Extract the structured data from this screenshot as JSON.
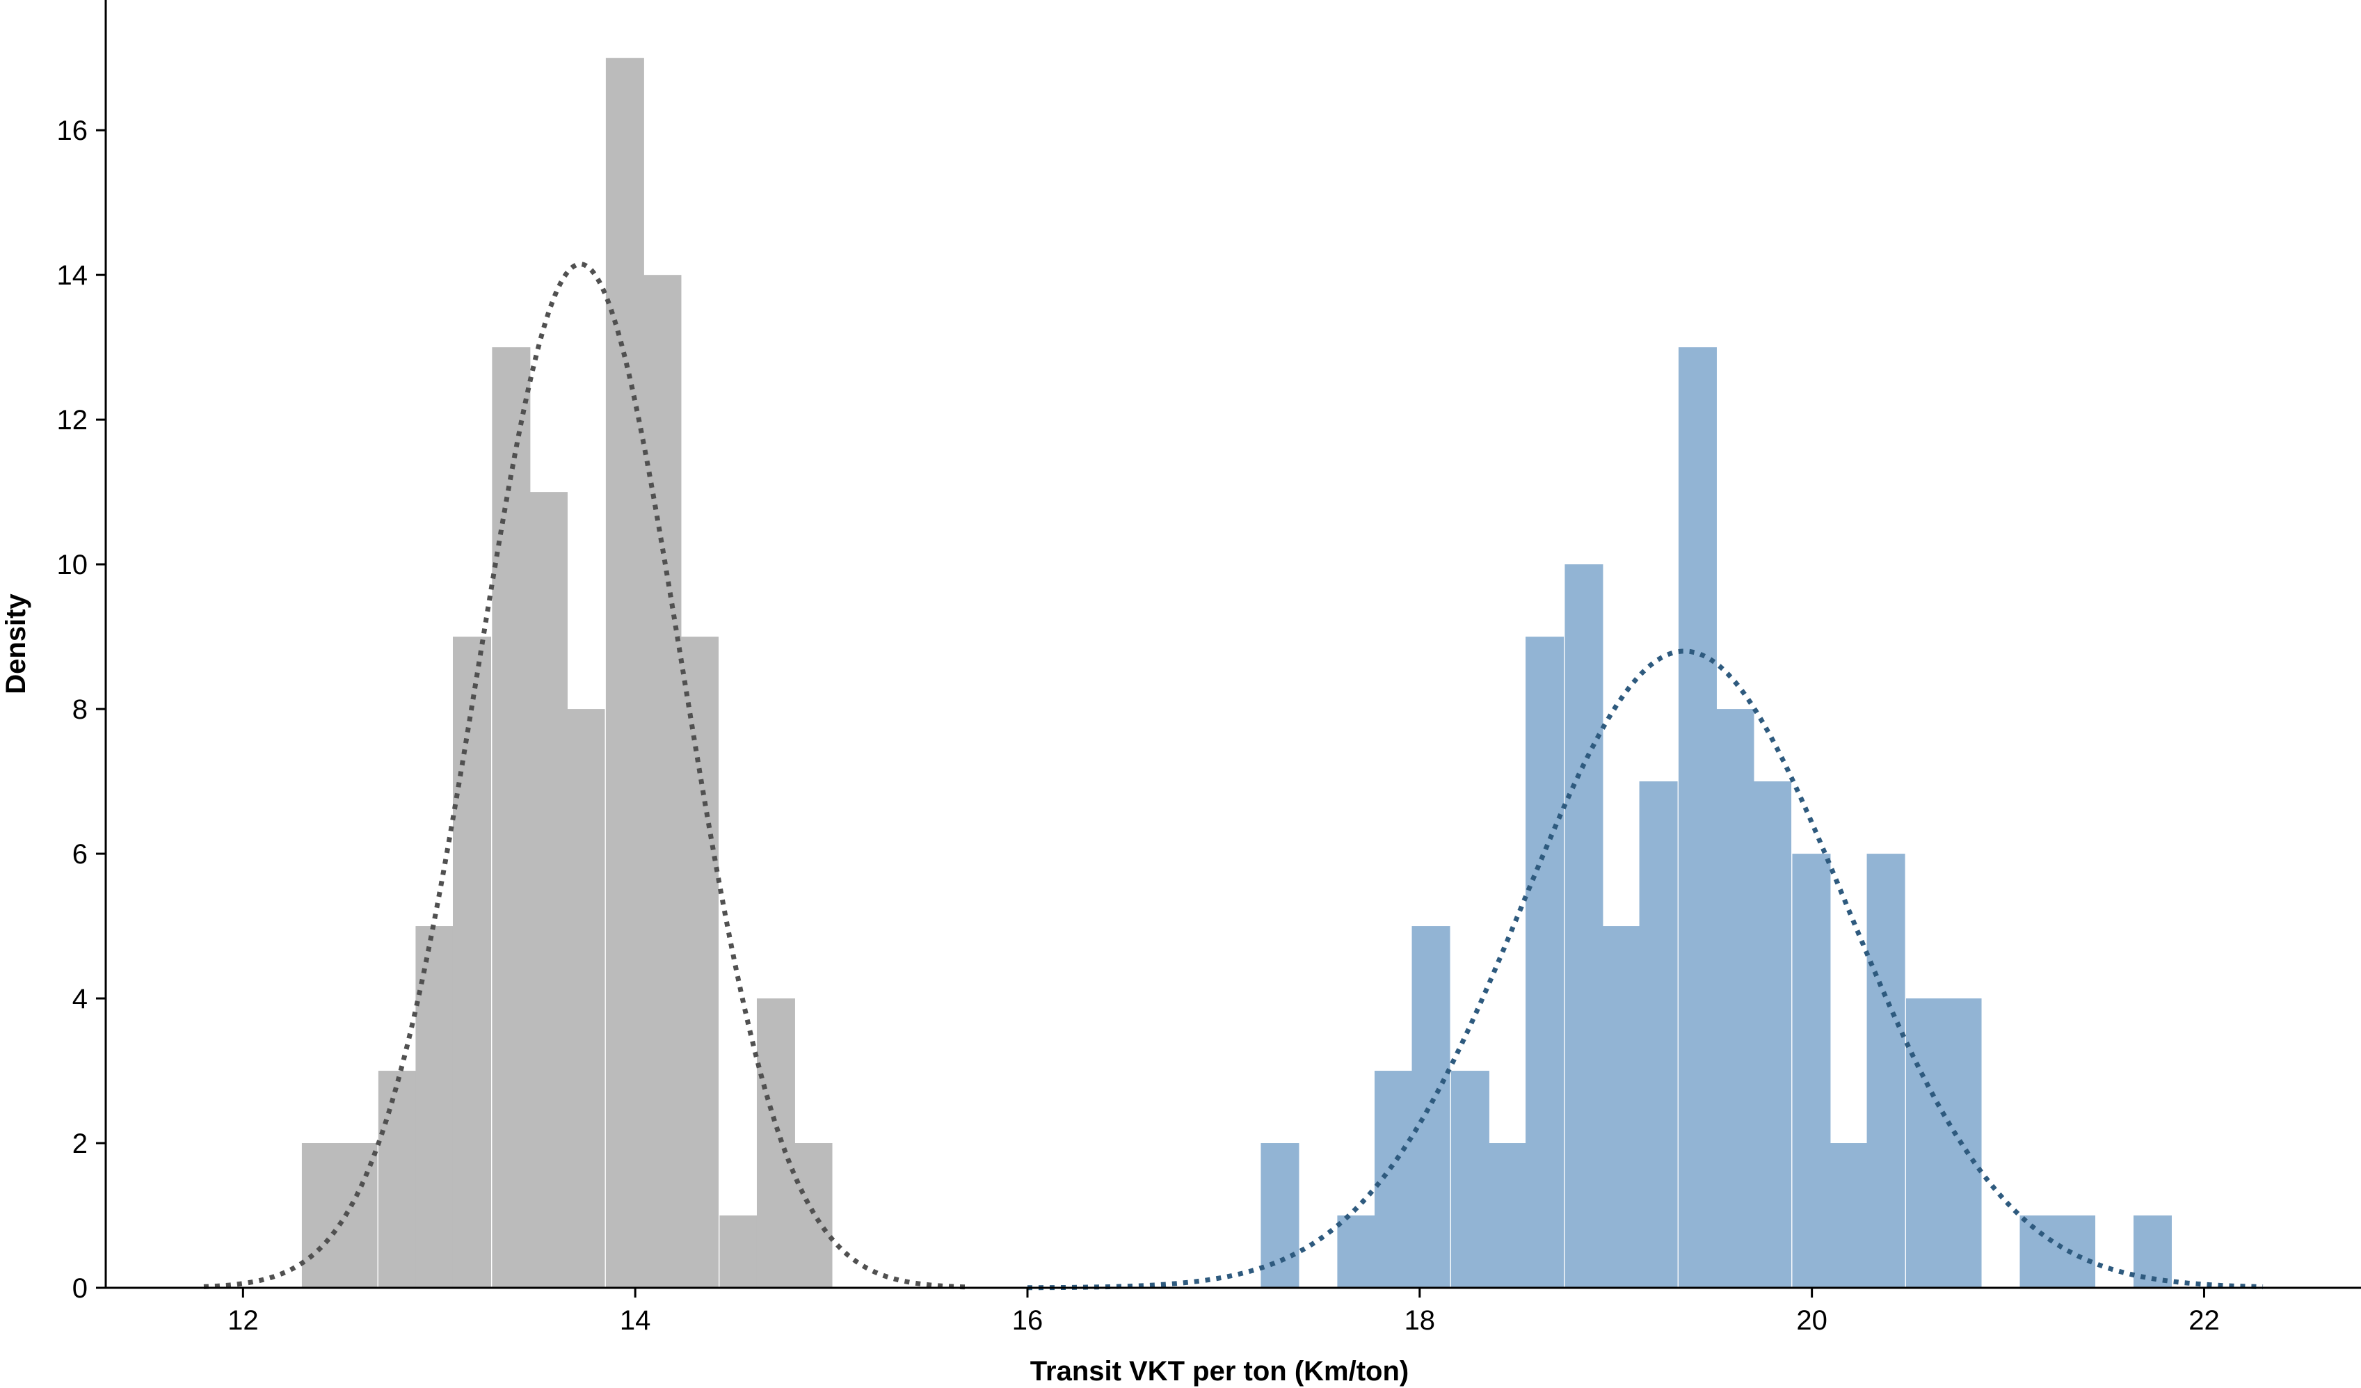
{
  "chart_data": {
    "type": "bar",
    "subtype": "histogram-with-density-curves",
    "title": "",
    "xlabel": "Transit VKT per ton (Km/ton)",
    "ylabel": "Density",
    "xlim": [
      11.3,
      22.8
    ],
    "ylim": [
      0,
      17.8
    ],
    "xticks": [
      12,
      14,
      16,
      18,
      20,
      22
    ],
    "yticks": [
      0,
      2,
      4,
      6,
      8,
      10,
      12,
      14,
      16
    ],
    "grid": false,
    "legend": "none",
    "bin_width": 0.193,
    "series": [
      {
        "color": "#bbbbbb",
        "curve_color": "#505050",
        "bins": [
          {
            "x0": 12.3,
            "value": 2
          },
          {
            "x0": 12.49,
            "value": 2
          },
          {
            "x0": 12.69,
            "value": 3
          },
          {
            "x0": 12.88,
            "value": 5
          },
          {
            "x0": 13.07,
            "value": 9
          },
          {
            "x0": 13.27,
            "value": 13
          },
          {
            "x0": 13.46,
            "value": 11
          },
          {
            "x0": 13.65,
            "value": 8
          },
          {
            "x0": 13.85,
            "value": 17
          },
          {
            "x0": 14.04,
            "value": 14
          },
          {
            "x0": 14.23,
            "value": 9
          },
          {
            "x0": 14.43,
            "value": 1
          },
          {
            "x0": 14.62,
            "value": 4
          },
          {
            "x0": 14.81,
            "value": 2
          }
        ],
        "curve": {
          "mean": 13.72,
          "sd": 0.52,
          "peak": 14.15,
          "x_range": [
            11.8,
            15.7
          ]
        }
      },
      {
        "color": "#92b4d4",
        "curve_color": "#2e5a7e",
        "bins": [
          {
            "x0": 17.19,
            "value": 2
          },
          {
            "x0": 17.58,
            "value": 1
          },
          {
            "x0": 17.77,
            "value": 3
          },
          {
            "x0": 17.96,
            "value": 5
          },
          {
            "x0": 18.16,
            "value": 3
          },
          {
            "x0": 18.35,
            "value": 2
          },
          {
            "x0": 18.54,
            "value": 9
          },
          {
            "x0": 18.74,
            "value": 10
          },
          {
            "x0": 18.93,
            "value": 5
          },
          {
            "x0": 19.12,
            "value": 7
          },
          {
            "x0": 19.32,
            "value": 13
          },
          {
            "x0": 19.51,
            "value": 8
          },
          {
            "x0": 19.7,
            "value": 7
          },
          {
            "x0": 19.9,
            "value": 6
          },
          {
            "x0": 20.09,
            "value": 2
          },
          {
            "x0": 20.28,
            "value": 6
          },
          {
            "x0": 20.48,
            "value": 4
          },
          {
            "x0": 20.67,
            "value": 4
          },
          {
            "x0": 21.06,
            "value": 1
          },
          {
            "x0": 21.25,
            "value": 1
          },
          {
            "x0": 21.64,
            "value": 1
          }
        ],
        "curve": {
          "mean": 19.35,
          "sd": 0.82,
          "peak": 8.8,
          "x_range": [
            16.0,
            22.3
          ]
        }
      }
    ]
  }
}
